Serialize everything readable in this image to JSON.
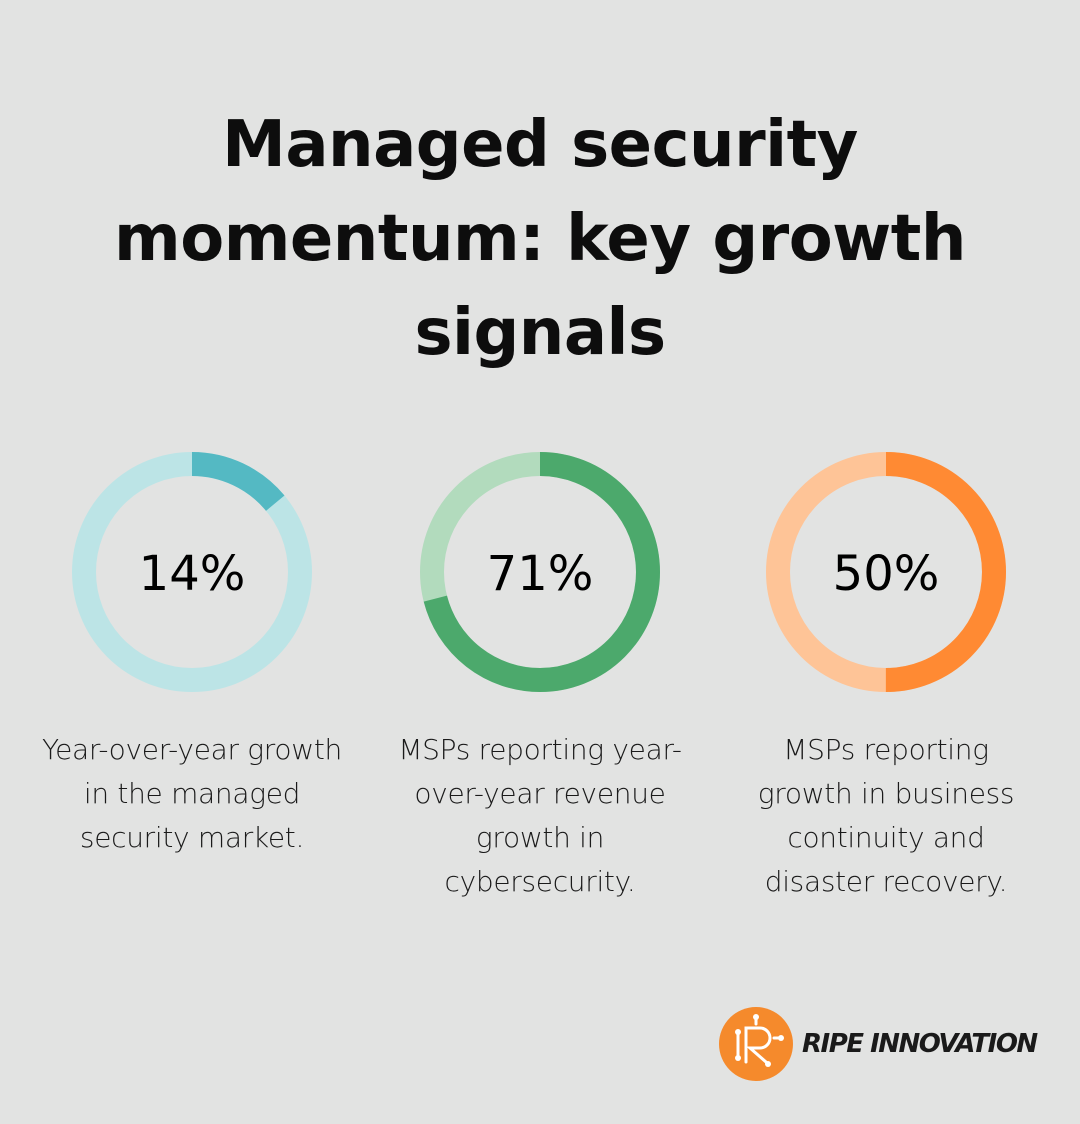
{
  "title": "Managed security momentum: key growth signals",
  "chart_data": [
    {
      "type": "pie",
      "value": 14,
      "label": "14%",
      "caption": "Year-over-year growth in the managed security market.",
      "colors": {
        "fill": "#54b9c3",
        "track": "#bce4e6"
      }
    },
    {
      "type": "pie",
      "value": 71,
      "label": "71%",
      "caption": "MSPs reporting year-over-year revenue growth in cybersecurity.",
      "colors": {
        "fill": "#4ca96c",
        "track": "#b2dbbd"
      }
    },
    {
      "type": "pie",
      "value": 50,
      "label": "50%",
      "caption": "MSPs reporting growth in business continuity and disaster recovery.",
      "colors": {
        "fill": "#ff8a33",
        "track": "#fec497"
      }
    }
  ],
  "logo": {
    "text": "RIPE INNOVATION",
    "icon": "circuit-r-logo-icon",
    "color": "#f58a2c"
  }
}
